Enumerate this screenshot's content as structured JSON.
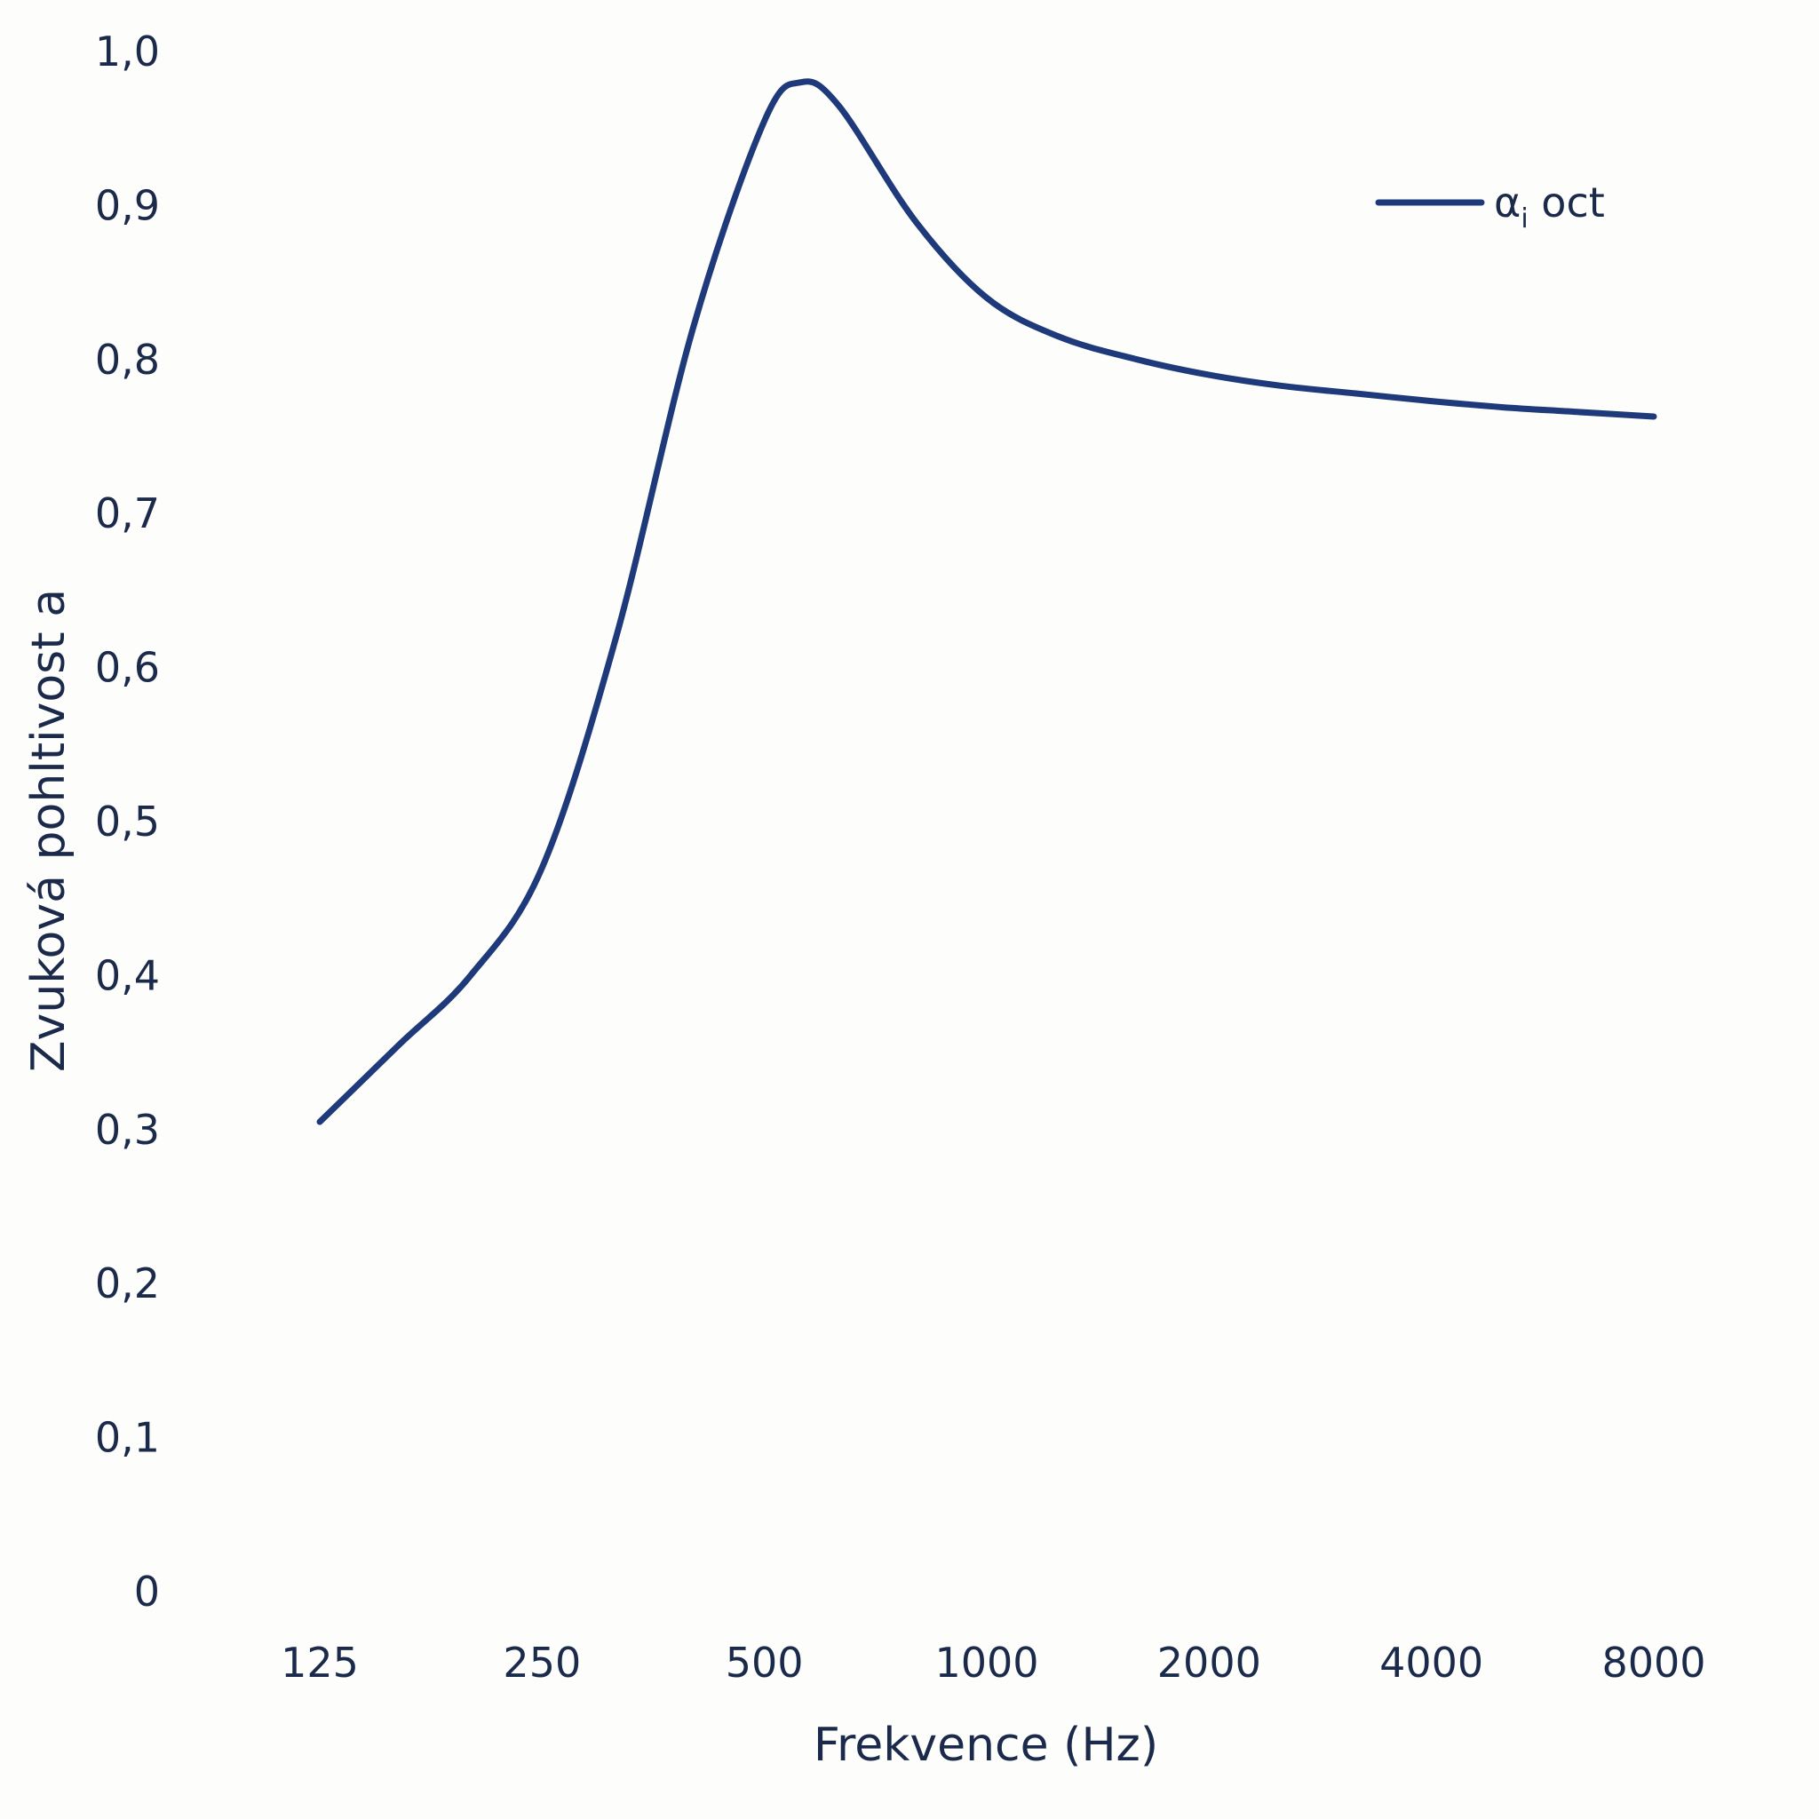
{
  "chart_data": {
    "type": "line",
    "title": "",
    "xlabel": "Frekvence (Hz)",
    "ylabel": "Zvuková pohltivost a",
    "categories": [
      "125",
      "250",
      "500",
      "1000",
      "2000",
      "4000",
      "8000"
    ],
    "x_scale": "octave",
    "yticks": [
      "0",
      "0,1",
      "0,2",
      "0,3",
      "0,4",
      "0,5",
      "0,6",
      "0,7",
      "0,8",
      "0,9",
      "1,0"
    ],
    "ylim": [
      0,
      1.0
    ],
    "grid": false,
    "legend_position": "top-right",
    "series": [
      {
        "name": "αi oct",
        "name_base": "α",
        "name_sub": "i",
        "name_rest": " oct",
        "color": "#1f3a7a",
        "x": [
          125,
          160,
          200,
          250,
          315,
          400,
          500,
          560,
          630,
          800,
          1000,
          1250,
          1600,
          2000,
          2500,
          3150,
          4000,
          5000,
          6300,
          8000
        ],
        "values": [
          0.305,
          0.355,
          0.4,
          0.47,
          0.62,
          0.82,
          0.955,
          0.98,
          0.965,
          0.89,
          0.84,
          0.815,
          0.8,
          0.79,
          0.783,
          0.778,
          0.773,
          0.769,
          0.766,
          0.763
        ]
      }
    ]
  }
}
